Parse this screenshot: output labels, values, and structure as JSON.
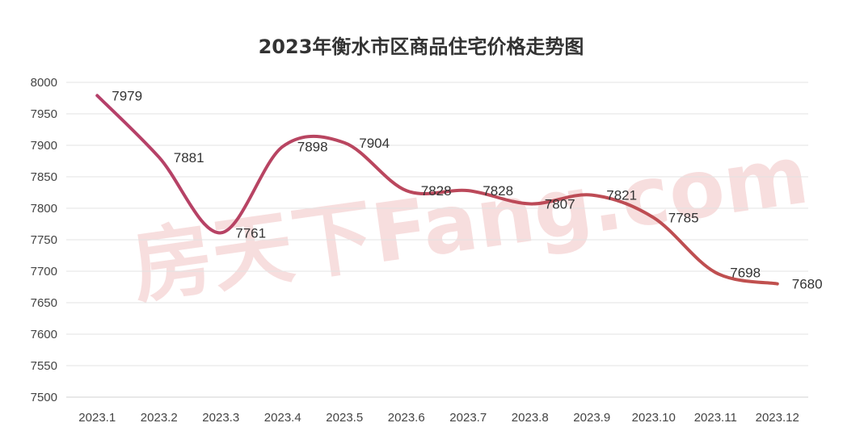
{
  "watermark": "房天下Fang.com",
  "chart_data": {
    "type": "line",
    "title": "2023年衡水市区商品住宅价格走势图",
    "xlabel": "",
    "ylabel": "",
    "categories": [
      "2023.1",
      "2023.2",
      "2023.3",
      "2023.4",
      "2023.5",
      "2023.6",
      "2023.7",
      "2023.8",
      "2023.9",
      "2023.10",
      "2023.11",
      "2023.12"
    ],
    "series": [
      {
        "values": [
          7979,
          7881,
          7761,
          7898,
          7904,
          7828,
          7828,
          7807,
          7821,
          7785,
          7698,
          7680
        ]
      }
    ],
    "ylim": [
      7500,
      8000
    ],
    "yticks": [
      "7500",
      "7550",
      "7600",
      "7650",
      "7700",
      "7750",
      "7800",
      "7850",
      "7900",
      "7950",
      "8000"
    ],
    "grid": true,
    "legend": "none",
    "line_color": "#b5406a",
    "line_color_end": "#c0504d"
  }
}
